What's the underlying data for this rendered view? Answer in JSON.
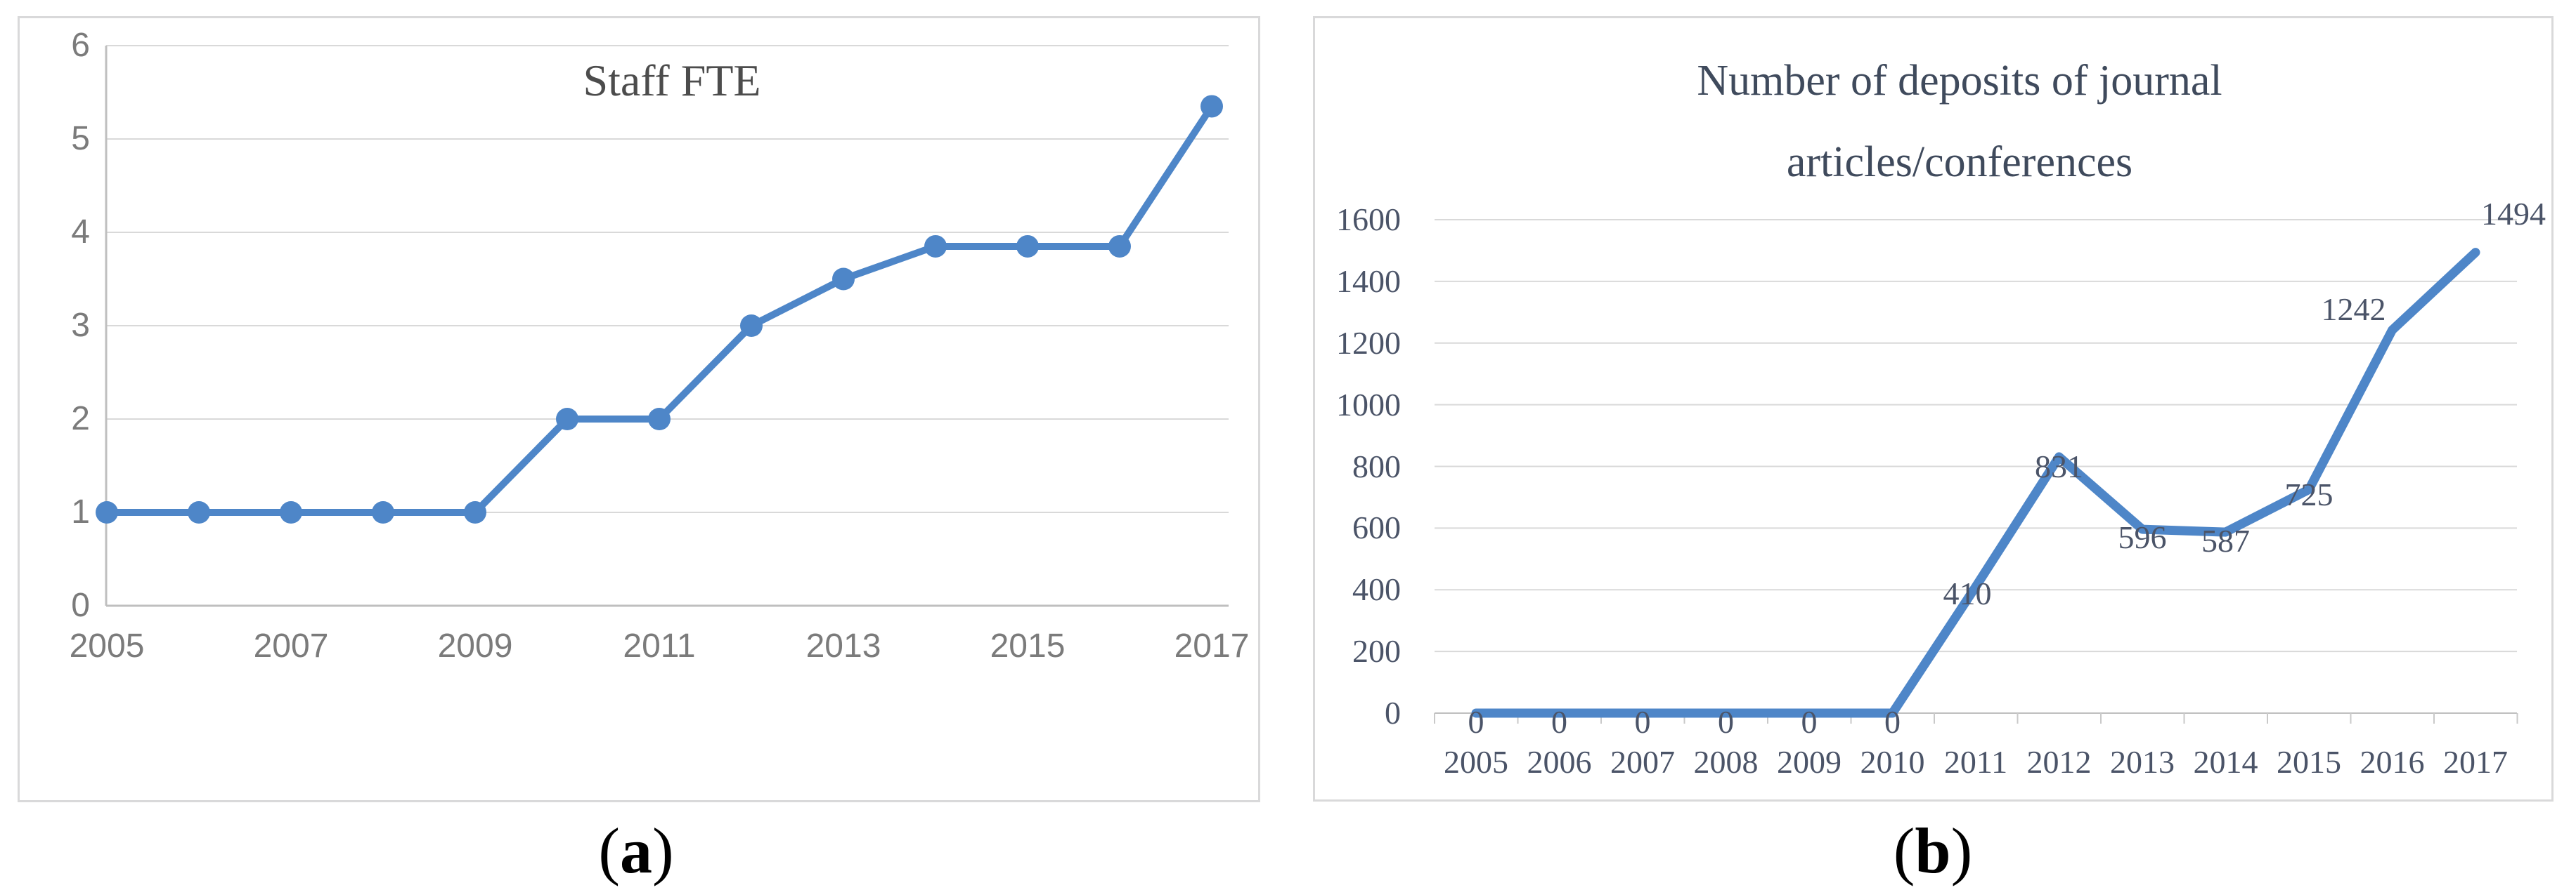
{
  "figure": {
    "captions": [
      {
        "open": "(",
        "letter": "a",
        "close": ")"
      },
      {
        "open": "(",
        "letter": "b",
        "close": ")"
      }
    ]
  },
  "colors": {
    "line": "#4e86c8",
    "grid": "#d9d9d9",
    "axis": "#bfbfbf",
    "tick": "#c9c9c9",
    "left_text": "#7b7b7b",
    "left_title": "#4c4c4c",
    "right_text": "#4b5468",
    "right_title": "#3f4a5c",
    "caption": "#000000",
    "panel_border": "#d9d9da"
  },
  "chart_data": [
    {
      "type": "line",
      "title": "Staff FTE",
      "x": [
        2005,
        2006,
        2007,
        2008,
        2009,
        2010,
        2011,
        2012,
        2013,
        2014,
        2015,
        2016,
        2017
      ],
      "values": [
        1,
        1,
        1,
        1,
        1,
        2,
        2,
        3,
        3.5,
        3.85,
        3.85,
        3.85,
        5.35
      ],
      "x_tick_labels": [
        "2005",
        "2007",
        "2009",
        "2011",
        "2013",
        "2015",
        "2017"
      ],
      "x_tick_years": [
        2005,
        2007,
        2009,
        2011,
        2013,
        2015,
        2017
      ],
      "y_ticks": [
        0,
        1,
        2,
        3,
        4,
        5,
        6
      ],
      "ylim": [
        0,
        6
      ],
      "xlabel": "",
      "ylabel": "",
      "grid": "horizontal",
      "legend": "none",
      "markers": true,
      "data_labels": false
    },
    {
      "type": "line",
      "title": "Number of deposits of journal articles/conferences",
      "title_lines": [
        "Number of deposits of journal",
        "articles/conferences"
      ],
      "x": [
        2005,
        2006,
        2007,
        2008,
        2009,
        2010,
        2011,
        2012,
        2013,
        2014,
        2015,
        2016,
        2017
      ],
      "values": [
        0,
        0,
        0,
        0,
        0,
        0,
        410,
        831,
        596,
        587,
        725,
        1242,
        1494
      ],
      "x_tick_labels": [
        "2005",
        "2006",
        "2007",
        "2008",
        "2009",
        "2010",
        "2011",
        "2012",
        "2013",
        "2014",
        "2015",
        "2016",
        "2017"
      ],
      "y_ticks": [
        0,
        200,
        400,
        600,
        800,
        1000,
        1200,
        1400,
        1600
      ],
      "ylim": [
        0,
        1600
      ],
      "xlabel": "",
      "ylabel": "",
      "grid": "horizontal",
      "legend": "none",
      "markers": false,
      "data_labels": true
    }
  ]
}
